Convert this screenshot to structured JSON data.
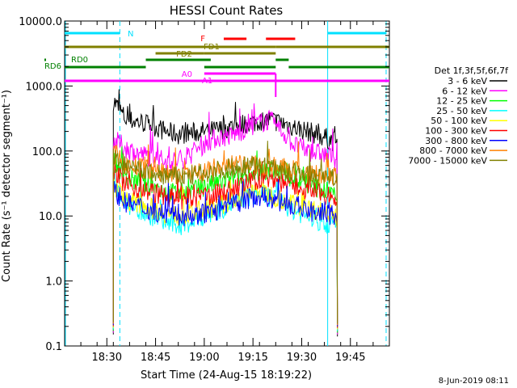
{
  "chart_data": {
    "type": "line",
    "title": "HESSI Count Rates",
    "xlabel": "Start Time (24-Aug-15 18:19:22)",
    "ylabel": "Count Rate (s⁻¹ detector segment⁻¹)",
    "yscale": "log",
    "ylim": [
      0.1,
      10000
    ],
    "xlim_min": [
      17,
      117
    ],
    "x_tick_labels": [
      "18:30",
      "18:45",
      "19:00",
      "19:15",
      "19:30",
      "19:45"
    ],
    "x_tick_values_min": [
      30,
      45,
      60,
      75,
      90,
      105
    ],
    "y_tick_labels": [
      "0.1",
      "1.0",
      "10.0",
      "100.0",
      "1000.0",
      "10000.0"
    ],
    "y_tick_values": [
      0.1,
      1,
      10,
      100,
      1000,
      10000
    ],
    "legend_title": "Det 1f,3f,5f,6f,7f",
    "legend_placement": "right",
    "timestamp": "8-Jun-2019 08:11",
    "x_min": [
      32,
      36,
      40,
      44,
      48,
      52,
      56,
      60,
      64,
      68,
      72,
      76,
      80,
      84,
      88,
      92,
      96,
      100,
      101
    ],
    "series": [
      {
        "name": "3 - 6 keV",
        "color": "#000000",
        "values": [
          600,
          300,
          280,
          250,
          200,
          180,
          190,
          200,
          210,
          230,
          260,
          280,
          300,
          270,
          230,
          200,
          170,
          140,
          130
        ]
      },
      {
        "name": "6 - 12 keV",
        "color": "#ff00ff",
        "values": [
          150,
          110,
          90,
          80,
          70,
          70,
          90,
          130,
          160,
          170,
          210,
          260,
          300,
          200,
          120,
          100,
          90,
          80,
          75
        ]
      },
      {
        "name": "12 - 25 keV",
        "color": "#00ff00",
        "values": [
          70,
          40,
          32,
          28,
          24,
          22,
          24,
          28,
          32,
          36,
          42,
          48,
          50,
          44,
          36,
          30,
          26,
          22,
          20
        ]
      },
      {
        "name": "25 - 50 keV",
        "color": "#00ffff",
        "values": [
          35,
          16,
          12,
          10,
          8,
          7,
          8,
          10,
          12,
          15,
          18,
          22,
          20,
          16,
          12,
          10,
          8,
          7,
          7
        ]
      },
      {
        "name": "50 - 100 keV",
        "color": "#ffff00",
        "values": [
          30,
          18,
          15,
          13,
          11,
          10,
          11,
          12,
          14,
          17,
          20,
          24,
          22,
          18,
          15,
          13,
          12,
          11,
          10
        ]
      },
      {
        "name": "100 - 300 keV",
        "color": "#ff0000",
        "values": [
          50,
          30,
          26,
          23,
          20,
          18,
          18,
          20,
          22,
          25,
          30,
          36,
          38,
          33,
          28,
          25,
          22,
          20,
          20
        ]
      },
      {
        "name": "300 - 800 keV",
        "color": "#0000ff",
        "values": [
          25,
          16,
          14,
          12,
          11,
          10,
          10,
          11,
          12,
          14,
          17,
          20,
          19,
          16,
          14,
          12,
          11,
          10,
          10
        ]
      },
      {
        "name": "800 - 7000 keV",
        "color": "#ff8000",
        "values": [
          90,
          60,
          55,
          50,
          45,
          42,
          45,
          50,
          55,
          60,
          60,
          60,
          58,
          55,
          50,
          45,
          42,
          40,
          40
        ]
      },
      {
        "name": "7000 - 15000 keV",
        "color": "#808000",
        "values": [
          80,
          55,
          50,
          45,
          42,
          40,
          42,
          45,
          50,
          55,
          58,
          60,
          55,
          50,
          45,
          42,
          40,
          38,
          38
        ]
      }
    ],
    "state_bars": [
      {
        "label": "N",
        "color": "#00e0ff",
        "segments": [
          [
            17,
            34
          ],
          [
            98,
            116
          ]
        ]
      },
      {
        "label": "F",
        "color": "#ff0000",
        "segments": [
          [
            66,
            73
          ],
          [
            79,
            88
          ]
        ]
      },
      {
        "label": "FD1",
        "color": "#808000",
        "segments": [
          [
            17,
            82
          ],
          [
            82,
            117
          ]
        ]
      },
      {
        "label": "FD2",
        "color": "#808000",
        "segments": [
          [
            45,
            60
          ],
          [
            60,
            82
          ]
        ]
      },
      {
        "label": "RD6",
        "color": "#008000",
        "segments": [
          [
            17,
            42
          ],
          [
            60,
            82
          ],
          [
            86,
            117
          ]
        ]
      },
      {
        "label": "RD0",
        "color": "#008000",
        "segments": [
          [
            42,
            62
          ],
          [
            82,
            86
          ]
        ]
      },
      {
        "label": "A0",
        "color": "#ff00ff",
        "segments": [
          [
            60,
            82
          ]
        ]
      },
      {
        "label": "A1",
        "color": "#ff00ff",
        "segments": [
          [
            17,
            82
          ],
          [
            82,
            117
          ]
        ]
      }
    ],
    "vertical_markers": [
      {
        "x_min": 34,
        "color": "#00e0ff",
        "style": "dashed"
      },
      {
        "x_min": 98,
        "color": "#00e0ff",
        "style": "solid"
      },
      {
        "x_min": 116,
        "color": "#00e0ff",
        "style": "dashed"
      }
    ]
  }
}
